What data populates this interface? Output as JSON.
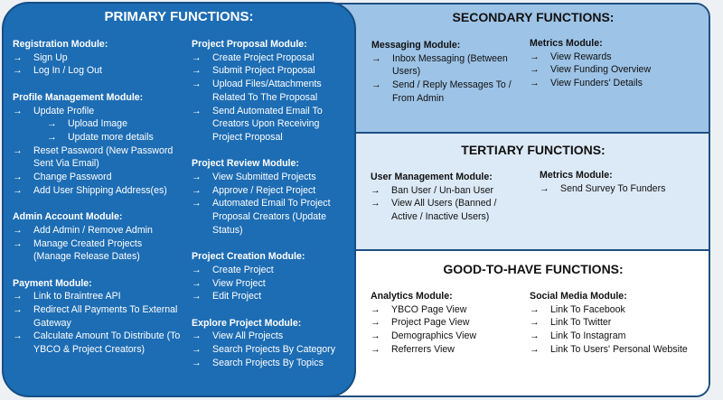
{
  "primary": {
    "title": "PRIMARY FUNCTIONS:",
    "columns": [
      [
        {
          "title": "Registration Module:",
          "items": [
            "Sign Up",
            "Log In / Log Out"
          ]
        },
        {
          "title": "Profile Management Module:",
          "items": [
            {
              "label": "Update Profile",
              "children": [
                "Upload Image",
                "Update more details"
              ]
            },
            "Reset Password (New Password Sent Via Email)",
            "Change Password",
            "Add User Shipping Address(es)"
          ]
        },
        {
          "title": "Admin Account Module:",
          "items": [
            "Add Admin / Remove Admin",
            "Manage Created Projects (Manage Release Dates)"
          ]
        },
        {
          "title": "Payment Module:",
          "items": [
            "Link to Braintree API",
            "Redirect All Payments To External Gateway",
            "Calculate Amount To Distribute (To YBCO & Project Creators)"
          ]
        }
      ],
      [
        {
          "title": "Project Proposal Module:",
          "items": [
            "Create Project Proposal",
            "Submit Project Proposal",
            "Upload Files/Attachments Related To The Proposal",
            "Send Automated Email To Creators Upon Receiving Project Proposal"
          ]
        },
        {
          "title": "Project Review Module:",
          "items": [
            "View Submitted Projects",
            "Approve / Reject Project",
            "Automated Email To Project Proposal Creators (Update Status)"
          ]
        },
        {
          "title": "Project Creation Module:",
          "items": [
            "Create Project",
            "View Project",
            "Edit Project"
          ]
        },
        {
          "title": "Explore Project Module:",
          "items": [
            "View All Projects",
            "Search Projects By Category",
            "Search Projects By Topics"
          ]
        }
      ]
    ]
  },
  "secondary": {
    "title": "SECONDARY FUNCTIONS:",
    "columns": [
      [
        {
          "title": "Messaging Module:",
          "items": [
            "Inbox Messaging (Between Users)",
            "Send / Reply Messages To / From Admin"
          ]
        }
      ],
      [
        {
          "title": "Metrics Module:",
          "items": [
            "View Rewards",
            "View Funding Overview",
            "View Funders' Details"
          ]
        }
      ]
    ]
  },
  "tertiary": {
    "title": "TERTIARY FUNCTIONS:",
    "columns": [
      [
        {
          "title": "User Management Module:",
          "items": [
            "Ban User / Un-ban User",
            "View All Users (Banned / Active / Inactive Users)"
          ]
        }
      ],
      [
        {
          "title": "Metrics Module:",
          "items": [
            "Send Survey To Funders"
          ]
        }
      ]
    ]
  },
  "good_to_have": {
    "title": "GOOD-TO-HAVE FUNCTIONS:",
    "columns": [
      [
        {
          "title": "Analytics Module:",
          "items": [
            "YBCO Page View",
            "Project Page View",
            "Demographics View",
            "Referrers View"
          ]
        }
      ],
      [
        {
          "title": "Social Media Module:",
          "items": [
            "Link To Facebook",
            "Link To Twitter",
            "Link To Instagram",
            "Link To Users' Personal Website"
          ]
        }
      ]
    ]
  }
}
